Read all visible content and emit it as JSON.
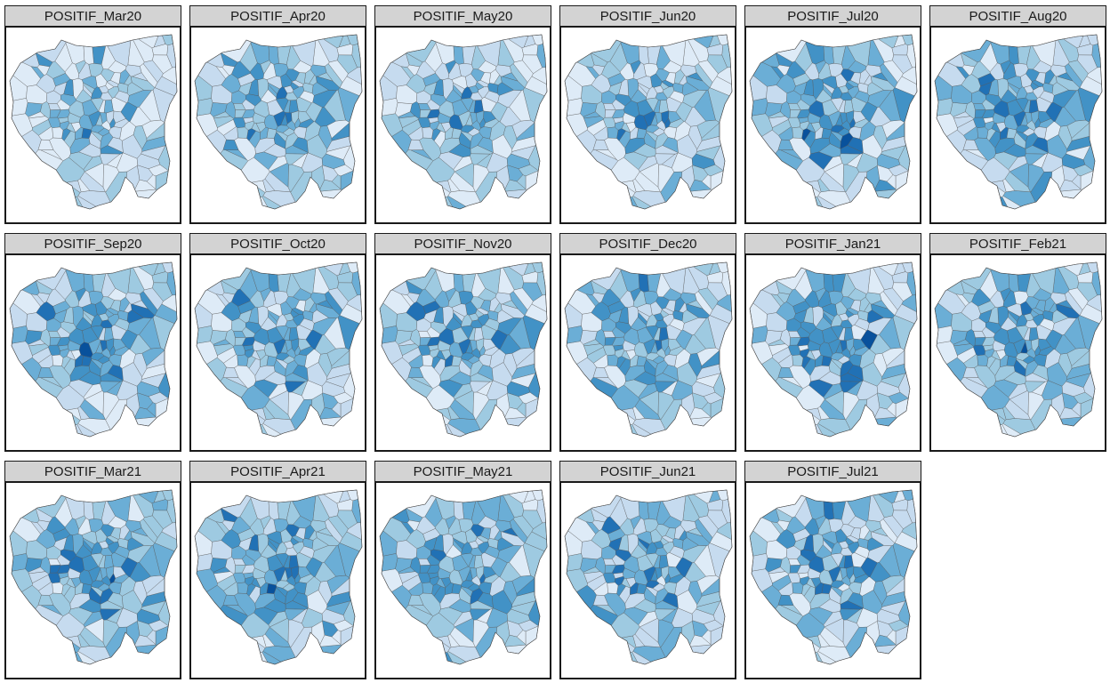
{
  "panels": [
    {
      "title": "POSITIF_Mar20",
      "level": 0.28,
      "seed": 3
    },
    {
      "title": "POSITIF_Apr20",
      "level": 0.48,
      "seed": 11
    },
    {
      "title": "POSITIF_May20",
      "level": 0.42,
      "seed": 19
    },
    {
      "title": "POSITIF_Jun20",
      "level": 0.46,
      "seed": 27
    },
    {
      "title": "POSITIF_Jul20",
      "level": 0.55,
      "seed": 35
    },
    {
      "title": "POSITIF_Aug20",
      "level": 0.52,
      "seed": 43
    },
    {
      "title": "POSITIF_Sep20",
      "level": 0.56,
      "seed": 51
    },
    {
      "title": "POSITIF_Oct20",
      "level": 0.54,
      "seed": 59
    },
    {
      "title": "POSITIF_Nov20",
      "level": 0.5,
      "seed": 67
    },
    {
      "title": "POSITIF_Dec20",
      "level": 0.52,
      "seed": 75
    },
    {
      "title": "POSITIF_Jan21",
      "level": 0.53,
      "seed": 83
    },
    {
      "title": "POSITIF_Feb21",
      "level": 0.51,
      "seed": 91
    },
    {
      "title": "POSITIF_Mar21",
      "level": 0.55,
      "seed": 99
    },
    {
      "title": "POSITIF_Apr21",
      "level": 0.55,
      "seed": 107
    },
    {
      "title": "POSITIF_May21",
      "level": 0.54,
      "seed": 115
    },
    {
      "title": "POSITIF_Jun21",
      "level": 0.55,
      "seed": 123
    },
    {
      "title": "POSITIF_Jul21",
      "level": 0.5,
      "seed": 131
    }
  ],
  "palette": [
    "#deebf7",
    "#c6dbef",
    "#9ecae1",
    "#6baed6",
    "#4292c6",
    "#2171b5",
    "#08519c"
  ],
  "border_color": "#555555"
}
